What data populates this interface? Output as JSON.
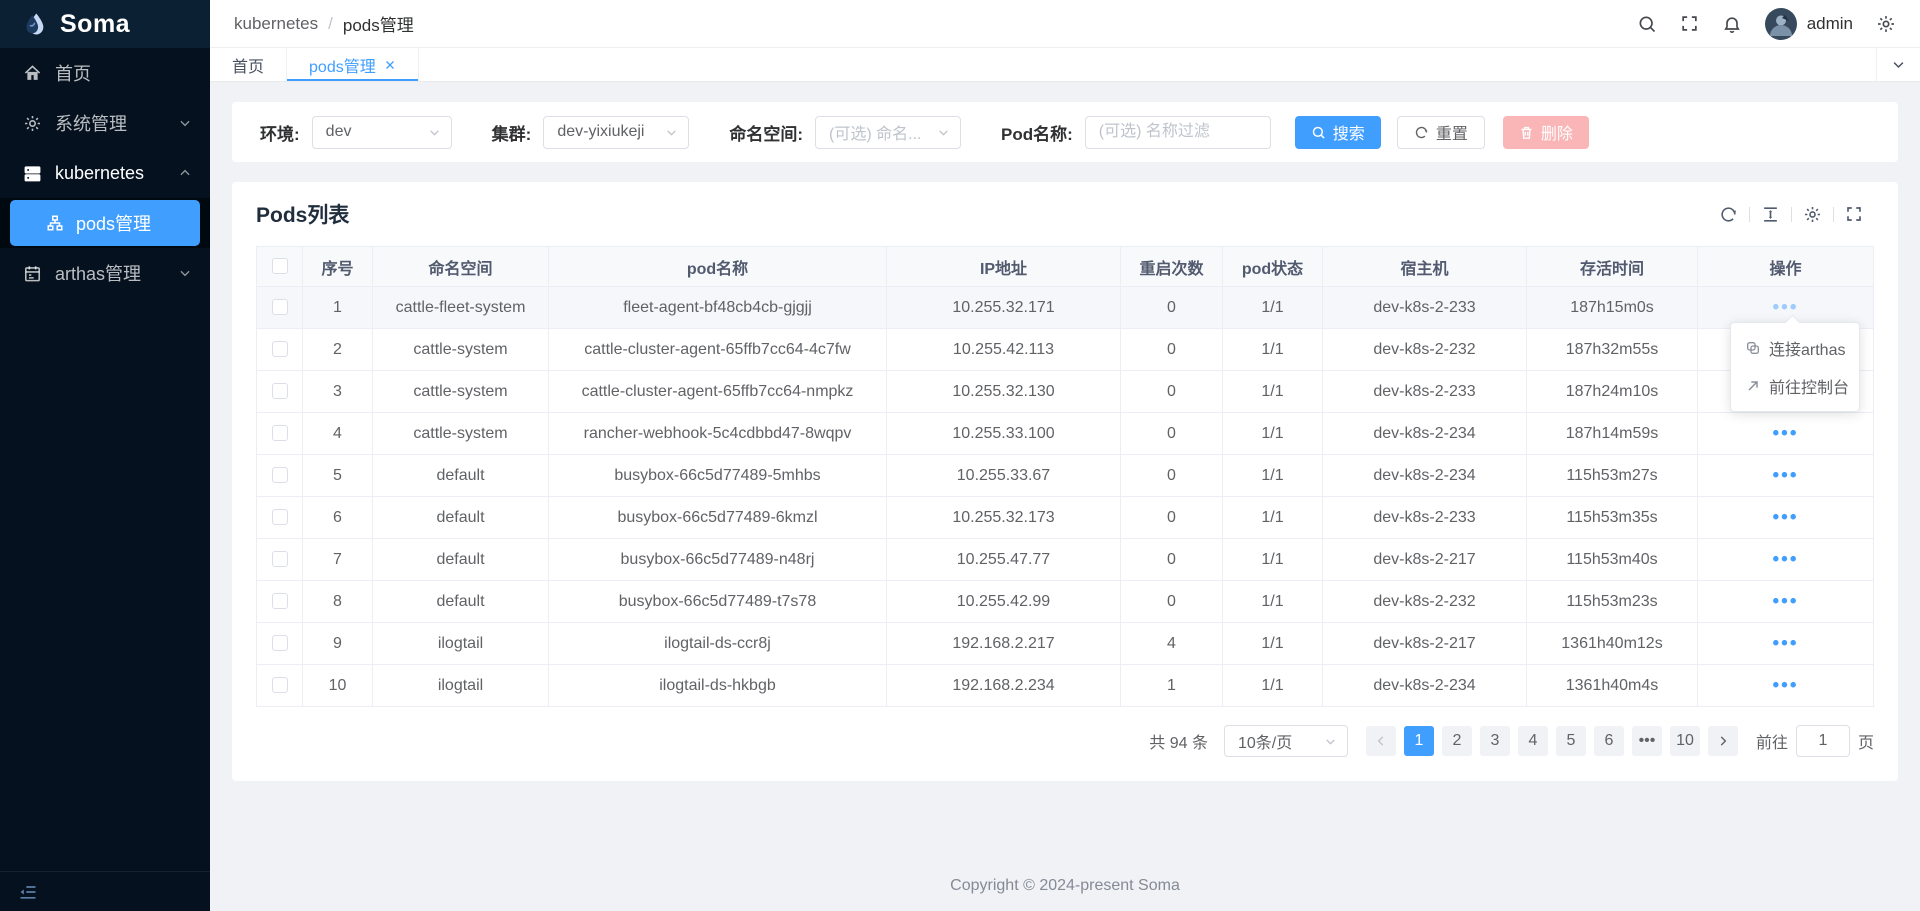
{
  "app": {
    "name": "Soma",
    "footer": "Copyright © 2024-present Soma"
  },
  "colors": {
    "accent": "#409eff",
    "sidebar_bg": "#05111e",
    "danger_disabled": "#fab6b6"
  },
  "sidebar": {
    "home": "首页",
    "system": "系统管理",
    "kubernetes": "kubernetes",
    "pods": "pods管理",
    "arthas": "arthas管理"
  },
  "header": {
    "breadcrumb": [
      "kubernetes",
      "pods管理"
    ],
    "separator": "/",
    "username": "admin"
  },
  "tabs": {
    "home": "首页",
    "pods": "pods管理"
  },
  "filters": {
    "env_label": "环境:",
    "env_value": "dev",
    "cluster_label": "集群:",
    "cluster_value": "dev-yixiukeji",
    "namespace_label": "命名空间:",
    "namespace_placeholder": "(可选) 命名...",
    "pod_label": "Pod名称:",
    "pod_placeholder": "(可选) 名称过滤",
    "search_label": "搜索",
    "reset_label": "重置",
    "delete_label": "删除"
  },
  "table": {
    "title": "Pods列表",
    "columns": [
      "序号",
      "命名空间",
      "pod名称",
      "IP地址",
      "重启次数",
      "pod状态",
      "宿主机",
      "存活时间",
      "操作"
    ],
    "ops_glyph": "•••",
    "rows": [
      [
        "1",
        "cattle-fleet-system",
        "fleet-agent-bf48cb4cb-gjgjj",
        "10.255.32.171",
        "0",
        "1/1",
        "dev-k8s-2-233",
        "187h15m0s"
      ],
      [
        "2",
        "cattle-system",
        "cattle-cluster-agent-65ffb7cc64-4c7fw",
        "10.255.42.113",
        "0",
        "1/1",
        "dev-k8s-2-232",
        "187h32m55s"
      ],
      [
        "3",
        "cattle-system",
        "cattle-cluster-agent-65ffb7cc64-nmpkz",
        "10.255.32.130",
        "0",
        "1/1",
        "dev-k8s-2-233",
        "187h24m10s"
      ],
      [
        "4",
        "cattle-system",
        "rancher-webhook-5c4cdbbd47-8wqpv",
        "10.255.33.100",
        "0",
        "1/1",
        "dev-k8s-2-234",
        "187h14m59s"
      ],
      [
        "5",
        "default",
        "busybox-66c5d77489-5mhbs",
        "10.255.33.67",
        "0",
        "1/1",
        "dev-k8s-2-234",
        "115h53m27s"
      ],
      [
        "6",
        "default",
        "busybox-66c5d77489-6kmzl",
        "10.255.32.173",
        "0",
        "1/1",
        "dev-k8s-2-233",
        "115h53m35s"
      ],
      [
        "7",
        "default",
        "busybox-66c5d77489-n48rj",
        "10.255.47.77",
        "0",
        "1/1",
        "dev-k8s-2-217",
        "115h53m40s"
      ],
      [
        "8",
        "default",
        "busybox-66c5d77489-t7s78",
        "10.255.42.99",
        "0",
        "1/1",
        "dev-k8s-2-232",
        "115h53m23s"
      ],
      [
        "9",
        "ilogtail",
        "ilogtail-ds-ccr8j",
        "192.168.2.217",
        "4",
        "1/1",
        "dev-k8s-2-217",
        "1361h40m12s"
      ],
      [
        "10",
        "ilogtail",
        "ilogtail-ds-hkbgb",
        "192.168.2.234",
        "1",
        "1/1",
        "dev-k8s-2-234",
        "1361h40m4s"
      ]
    ]
  },
  "action_menu": {
    "connect": "连接arthas",
    "console": "前往控制台"
  },
  "pagination": {
    "total_text": "共 94 条",
    "page_size": "10条/页",
    "pages": [
      "1",
      "2",
      "3",
      "4",
      "5",
      "6",
      "•••",
      "10"
    ],
    "active_page": "1",
    "goto_label": "前往",
    "goto_value": "1",
    "page_unit": "页"
  }
}
